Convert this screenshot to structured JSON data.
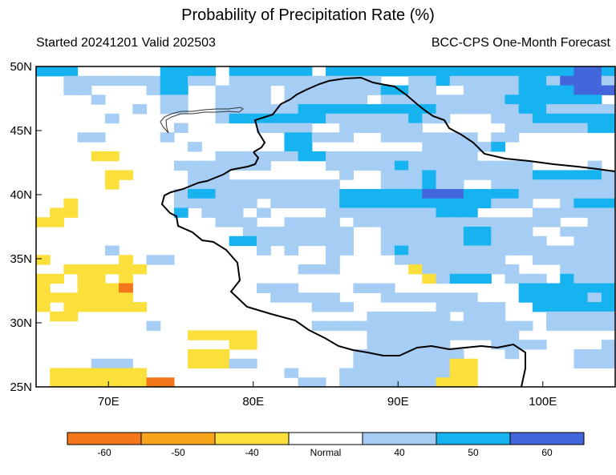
{
  "title": "Probability of Precipitation Rate (%)",
  "subtitle_left": "Started 20241201  Valid 202503",
  "subtitle_right": "BCC-CPS One-Month Forecast",
  "lat_labels": [
    "50N",
    "45N",
    "40N",
    "35N",
    "30N",
    "25N"
  ],
  "lon_labels": [
    "70E",
    "80E",
    "90E",
    "100E"
  ],
  "colorbar": {
    "colors": [
      "#f4761a",
      "#f8a51b",
      "#fbdf3b",
      "#ffffff",
      "#a6cef5",
      "#16b3f0",
      "#4466dd"
    ],
    "labels": [
      "-60",
      "-50",
      "-40",
      "Normal",
      "40",
      "50",
      "60"
    ]
  },
  "grid_legend": {
    "a": "#a6cef5",
    "b": "#16b3f0",
    "c": "#4466dd",
    "y": "#fbdf3b",
    "o": "#f8a51b",
    "r": "#f4761a"
  },
  "grid_rows": [
    "bbb......bbbb.bbbbbb.bbbbbbbbbbbbbbbbbbccb",
    "..aaaaaaabbaa.aaaaaaaaaaa..aabaaaaabbaccca",
    "..aa....abb..aaaa.aaaaaaabbaa..aaaabbbbccc",
    "....a....aa..aaaa.aaaaaa.aaaaaaaaabbbbbbb.",
    ".......a.aa..aaaaaabbbbbbbbbbaaaaaabbaaaaa",
    ".....a.......abbbbbbbaaaaaabaa...aaabbbbbb",
    "..........a.....aaaa..aaaaaa......aaaaaabb",
    "...aa....a........bbaaa..aaaaaaa.aa.......",
    "...........a......bb........aaaaab........",
    "....yy.......aaaaaabbaaaaaaaaaaa..........",
    "..........aaaaaaa....aaaaabaaaaaaaaa....a.",
    ".....yy....aaa........a..aaabaaaaaaabbbbba",
    ".....y.....aaaaaaaaaaa...aaabaa..aaaaaaaaa",
    "..........abbaaaaaaaaabbbbbbcccbbbbaaaaaaa",
    "..y.......aaaaaa.aaaaabbbbbbbbbbbaaa..abbb",
    ".yy.......b.aaa.a....aaaaaaaabbb....aaaaaa",
    "yy...........aaa..aaaa.aaaaaaaaaaaaaaa..aa",
    "...............aaaaaaaa..aaaaaabbaaa..aaaa",
    "..............bbaaaaaaa..aaaaaabbaaaa..aaa",
    ".....a..........a.a..aa..abaaaaaaaaaaaaaaa",
    "y.....y.aa...........a....aaaaaaaa..aaaaaa",
    "..yyyyyy...........aaa.....yaaaaaaa...aaaa",
    "yy.yy.y.....................yabbb.aaa.baaa",
    "y..yyyr.........aaa....aaa.........bbbbbbb",
    "yyyyyyy..........aaaaa...aaaaaaa...bbbbbab",
    "y.yyyyyy............aaa......aaaaa..bbbbbb",
    ".yy.....................aaaaaa.aaa...aaaaa",
    "........a...........aaaaaaaaaaaaaaaa.aaaaa",
    "...........yyyyy........aaaaaaaaaaa.......",
    "..............yy........aaaaaa...aaaa....a",
    "...........yyy.........aaaaaaaa...a....aaa",
    "....aaa....yyyaa.......aaaaaaayy.......aaa",
    ".yyyyyyy..........a...aaaaaaaayy..........",
    ".yyyyyyyrr.........aa.aaaaaaayyy.........."
  ]
}
